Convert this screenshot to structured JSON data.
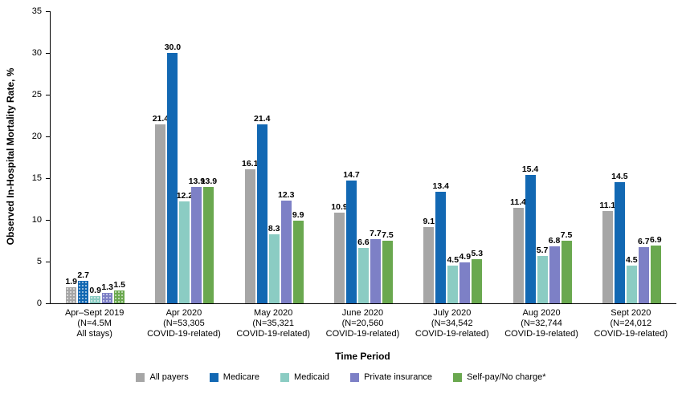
{
  "chart_data": {
    "type": "bar",
    "title": "",
    "xlabel": "Time Period",
    "ylabel": "Observed In-Hospital Mortality Rate, %",
    "ylim": [
      0,
      35
    ],
    "y_ticks": [
      0,
      5,
      10,
      15,
      20,
      25,
      30,
      35
    ],
    "grid": false,
    "legend_position": "bottom",
    "patterned_category_index": 0,
    "categories": [
      "Apr–Sept 2019\n(N=4.5M\nAll stays)",
      "Apr 2020\n(N=53,305\nCOVID-19-related)",
      "May 2020\n(N=35,321\nCOVID-19-related)",
      "June 2020\n(N=20,560\nCOVID-19-related)",
      "July 2020\n(N=34,542\nCOVID-19-related)",
      "Aug 2020\n(N=32,744\nCOVID-19-related)",
      "Sept 2020\n(N=24,012\nCOVID-19-related)"
    ],
    "series": [
      {
        "name": "All payers",
        "color": "#a6a6a6",
        "values": [
          1.9,
          21.4,
          16.1,
          10.9,
          9.1,
          11.4,
          11.1
        ]
      },
      {
        "name": "Medicare",
        "color": "#1268b3",
        "values": [
          2.7,
          30.0,
          21.4,
          14.7,
          13.4,
          15.4,
          14.5
        ]
      },
      {
        "name": "Medicaid",
        "color": "#8bccc3",
        "values": [
          0.9,
          12.2,
          8.3,
          6.6,
          4.5,
          5.7,
          4.5
        ]
      },
      {
        "name": "Private insurance",
        "color": "#7d80c6",
        "values": [
          1.3,
          13.9,
          12.3,
          7.7,
          4.9,
          6.8,
          6.7
        ]
      },
      {
        "name": "Self-pay/No charge*",
        "color": "#6aa84f",
        "values": [
          1.5,
          13.9,
          9.9,
          7.5,
          5.3,
          7.5,
          6.9
        ]
      }
    ]
  }
}
